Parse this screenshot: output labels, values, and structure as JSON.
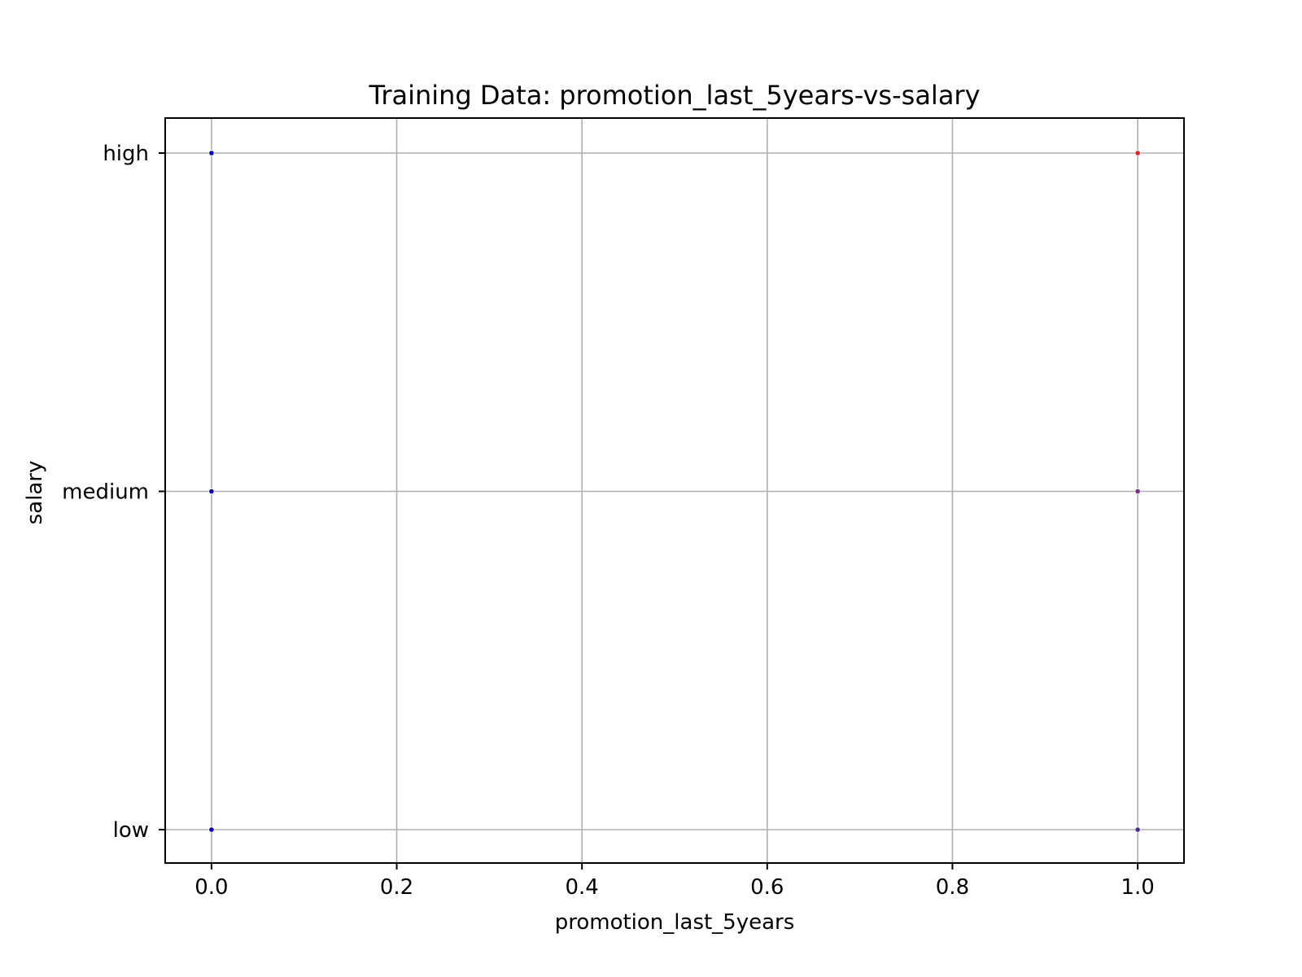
{
  "chart_data": {
    "type": "scatter",
    "title": "Training Data: promotion_last_5years-vs-salary",
    "xlabel": "promotion_last_5years",
    "ylabel": "salary",
    "xlim": [
      -0.05,
      1.05
    ],
    "x_ticks": [
      0.0,
      0.2,
      0.4,
      0.6,
      0.8,
      1.0
    ],
    "x_tick_labels": [
      "0.0",
      "0.2",
      "0.4",
      "0.6",
      "0.8",
      "1.0"
    ],
    "y_categories": [
      "low",
      "medium",
      "high"
    ],
    "grid": true,
    "points": [
      {
        "x": 0.0,
        "y": "high",
        "color": "#0000cc"
      },
      {
        "x": 0.0,
        "y": "medium",
        "color": "#0000cc"
      },
      {
        "x": 0.0,
        "y": "low",
        "color": "#0000cc"
      },
      {
        "x": 1.0,
        "y": "high",
        "color": "#dd2222"
      },
      {
        "x": 1.0,
        "y": "medium",
        "color": "#7a2a8a"
      },
      {
        "x": 1.0,
        "y": "low",
        "color": "#4a2a9a"
      }
    ]
  }
}
